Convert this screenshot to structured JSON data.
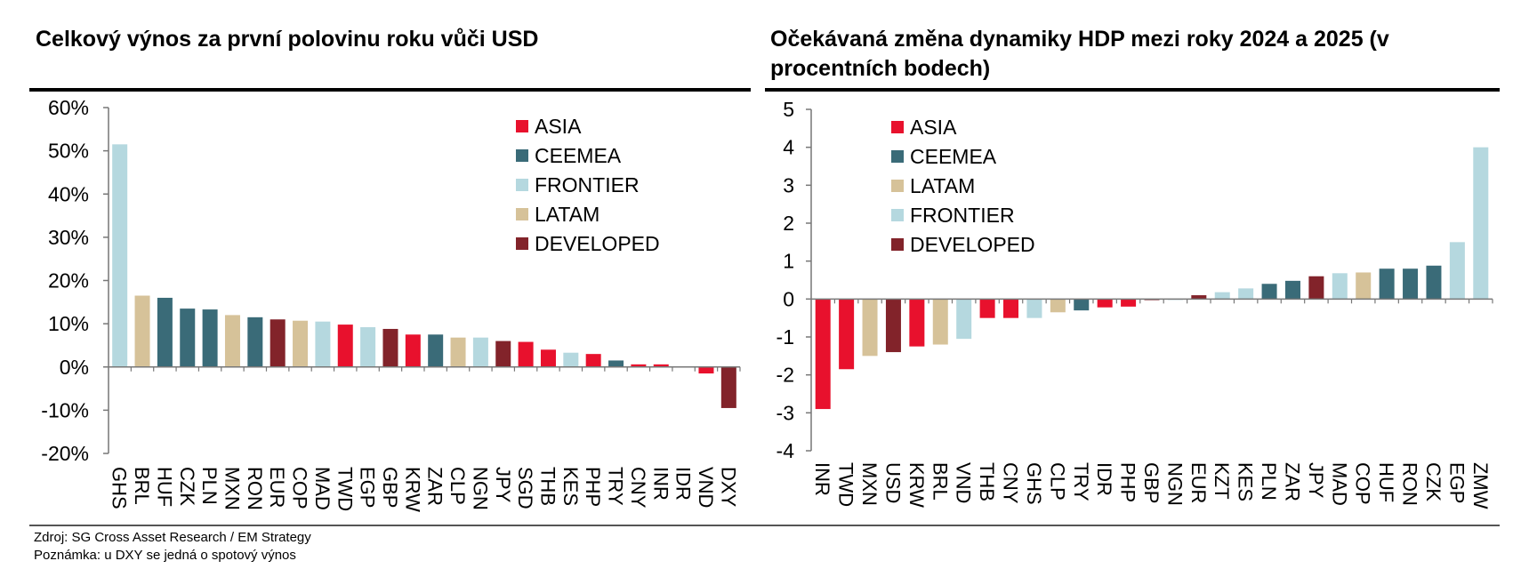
{
  "colors": {
    "ASIA": "#e8112d",
    "CEEMEA": "#3a6b78",
    "FRONTIER": "#b5d8df",
    "LATAM": "#d6c299",
    "DEVELOPED": "#82232a"
  },
  "footer": {
    "source": "Zdroj: SG Cross Asset Research / EM Strategy",
    "note": "Poznámka: u DXY se jedná o spotový výnos"
  },
  "chart_data": [
    {
      "type": "bar",
      "title": "Celkový výnos za první polovinu roku vůči USD",
      "ylim": [
        -20,
        60
      ],
      "yticks": [
        60,
        50,
        40,
        30,
        20,
        10,
        0,
        -10,
        -20
      ],
      "ytick_labels": [
        "60%",
        "50%",
        "40%",
        "30%",
        "20%",
        "10%",
        "0%",
        "-10%",
        "-20%"
      ],
      "legend": [
        "ASIA",
        "CEEMEA",
        "FRONTIER",
        "LATAM",
        "DEVELOPED"
      ],
      "legend_position": "top-right",
      "categories": [
        "GHS",
        "BRL",
        "HUF",
        "CZK",
        "PLN",
        "MXN",
        "RON",
        "EUR",
        "COP",
        "MAD",
        "TWD",
        "EGP",
        "GBP",
        "KRW",
        "ZAR",
        "CLP",
        "NGN",
        "JPY",
        "SGD",
        "THB",
        "KES",
        "PHP",
        "TRY",
        "CNY",
        "INR",
        "IDR",
        "VND",
        "DXY"
      ],
      "values": [
        51.5,
        16.5,
        16,
        13.5,
        13.3,
        12,
        11.5,
        11,
        10.7,
        10.5,
        9.8,
        9.2,
        8.8,
        7.5,
        7.5,
        6.8,
        6.8,
        6,
        5.8,
        4,
        3.3,
        3,
        1.5,
        0.6,
        0.6,
        0.1,
        -1.5,
        -9.5
      ],
      "groups": [
        "FRONTIER",
        "LATAM",
        "CEEMEA",
        "CEEMEA",
        "CEEMEA",
        "LATAM",
        "CEEMEA",
        "DEVELOPED",
        "LATAM",
        "FRONTIER",
        "ASIA",
        "FRONTIER",
        "DEVELOPED",
        "ASIA",
        "CEEMEA",
        "LATAM",
        "FRONTIER",
        "DEVELOPED",
        "ASIA",
        "ASIA",
        "FRONTIER",
        "ASIA",
        "CEEMEA",
        "ASIA",
        "ASIA",
        "ASIA",
        "ASIA",
        "DEVELOPED"
      ]
    },
    {
      "type": "bar",
      "title": "Očekávaná změna dynamiky HDP mezi roky 2024 a 2025 (v procentních bodech)",
      "ylim": [
        -4,
        5
      ],
      "yticks": [
        5,
        4,
        3,
        2,
        1,
        0,
        -1,
        -2,
        -3,
        -4
      ],
      "ytick_labels": [
        "5",
        "4",
        "3",
        "2",
        "1",
        "0",
        "-1",
        "-2",
        "-3",
        "-4"
      ],
      "legend": [
        "ASIA",
        "CEEMEA",
        "LATAM",
        "FRONTIER",
        "DEVELOPED"
      ],
      "legend_position": "top-left",
      "categories": [
        "INR",
        "TWD",
        "MXN",
        "USD",
        "KRW",
        "BRL",
        "VND",
        "THB",
        "CNY",
        "GHS",
        "CLP",
        "TRY",
        "IDR",
        "PHP",
        "GBP",
        "NGN",
        "EUR",
        "KZT",
        "KES",
        "PLN",
        "ZAR",
        "JPY",
        "MAD",
        "COP",
        "HUF",
        "RON",
        "CZK",
        "EGP",
        "ZMW"
      ],
      "values": [
        -2.9,
        -1.85,
        -1.5,
        -1.4,
        -1.25,
        -1.2,
        -1.05,
        -0.5,
        -0.5,
        -0.5,
        -0.35,
        -0.3,
        -0.22,
        -0.2,
        -0.03,
        -0.01,
        0.1,
        0.18,
        0.28,
        0.4,
        0.48,
        0.6,
        0.68,
        0.7,
        0.8,
        0.8,
        0.88,
        1.5,
        4.0
      ],
      "groups": [
        "ASIA",
        "ASIA",
        "LATAM",
        "DEVELOPED",
        "ASIA",
        "LATAM",
        "FRONTIER",
        "ASIA",
        "ASIA",
        "FRONTIER",
        "LATAM",
        "CEEMEA",
        "ASIA",
        "ASIA",
        "DEVELOPED",
        "FRONTIER",
        "DEVELOPED",
        "FRONTIER",
        "FRONTIER",
        "CEEMEA",
        "CEEMEA",
        "DEVELOPED",
        "FRONTIER",
        "LATAM",
        "CEEMEA",
        "CEEMEA",
        "CEEMEA",
        "FRONTIER",
        "FRONTIER"
      ]
    }
  ]
}
